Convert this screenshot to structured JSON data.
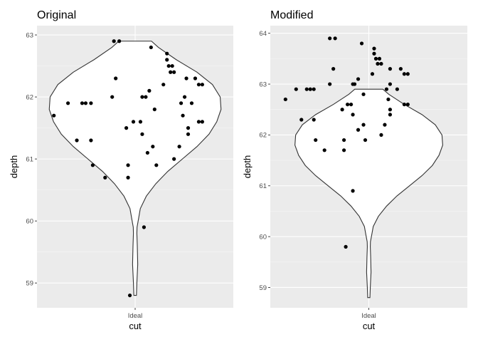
{
  "chart_data": [
    {
      "type": "violin",
      "title": "Original",
      "xlabel": "cut",
      "ylabel": "depth",
      "categories": [
        "Ideal"
      ],
      "ylim": [
        58.6,
        63.15
      ],
      "yticks": [
        59,
        60,
        61,
        62,
        63
      ],
      "grid": true,
      "violin": {
        "profile": [
          [
            58.8,
            0.015
          ],
          [
            59.0,
            0.02
          ],
          [
            59.3,
            0.03
          ],
          [
            59.6,
            0.025
          ],
          [
            59.8,
            0.02
          ],
          [
            59.9,
            0.022
          ],
          [
            60.0,
            0.035
          ],
          [
            60.2,
            0.06
          ],
          [
            60.4,
            0.13
          ],
          [
            60.6,
            0.24
          ],
          [
            60.8,
            0.38
          ],
          [
            61.0,
            0.55
          ],
          [
            61.2,
            0.72
          ],
          [
            61.4,
            0.86
          ],
          [
            61.6,
            0.95
          ],
          [
            61.8,
            1.0
          ],
          [
            62.0,
            0.99
          ],
          [
            62.2,
            0.9
          ],
          [
            62.4,
            0.72
          ],
          [
            62.6,
            0.48
          ],
          [
            62.8,
            0.27
          ],
          [
            62.9,
            0.19
          ]
        ]
      },
      "points": [
        {
          "x": -0.92,
          "y": 61.7
        },
        {
          "x": -0.76,
          "y": 61.9
        },
        {
          "x": -0.66,
          "y": 61.3
        },
        {
          "x": -0.6,
          "y": 61.9
        },
        {
          "x": -0.56,
          "y": 61.9
        },
        {
          "x": -0.5,
          "y": 61.3
        },
        {
          "x": -0.5,
          "y": 61.9
        },
        {
          "x": -0.48,
          "y": 60.9
        },
        {
          "x": -0.34,
          "y": 60.7
        },
        {
          "x": -0.26,
          "y": 62.0
        },
        {
          "x": -0.24,
          "y": 62.9
        },
        {
          "x": -0.22,
          "y": 62.3
        },
        {
          "x": -0.18,
          "y": 62.9
        },
        {
          "x": -0.1,
          "y": 61.5
        },
        {
          "x": -0.08,
          "y": 60.9
        },
        {
          "x": -0.08,
          "y": 60.7
        },
        {
          "x": -0.06,
          "y": 58.8
        },
        {
          "x": -0.02,
          "y": 61.6
        },
        {
          "x": 0.06,
          "y": 61.6
        },
        {
          "x": 0.08,
          "y": 62.0
        },
        {
          "x": 0.08,
          "y": 61.4
        },
        {
          "x": 0.1,
          "y": 59.9
        },
        {
          "x": 0.12,
          "y": 62.0
        },
        {
          "x": 0.14,
          "y": 61.1
        },
        {
          "x": 0.16,
          "y": 62.1
        },
        {
          "x": 0.18,
          "y": 62.8
        },
        {
          "x": 0.2,
          "y": 61.2
        },
        {
          "x": 0.22,
          "y": 61.8
        },
        {
          "x": 0.24,
          "y": 60.9
        },
        {
          "x": 0.32,
          "y": 62.2
        },
        {
          "x": 0.36,
          "y": 62.7
        },
        {
          "x": 0.36,
          "y": 62.6
        },
        {
          "x": 0.38,
          "y": 62.5
        },
        {
          "x": 0.4,
          "y": 62.4
        },
        {
          "x": 0.42,
          "y": 62.5
        },
        {
          "x": 0.44,
          "y": 62.4
        },
        {
          "x": 0.44,
          "y": 61.0
        },
        {
          "x": 0.5,
          "y": 61.2
        },
        {
          "x": 0.52,
          "y": 61.9
        },
        {
          "x": 0.54,
          "y": 61.7
        },
        {
          "x": 0.56,
          "y": 62.0
        },
        {
          "x": 0.58,
          "y": 62.3
        },
        {
          "x": 0.6,
          "y": 61.4
        },
        {
          "x": 0.6,
          "y": 61.5
        },
        {
          "x": 0.64,
          "y": 61.9
        },
        {
          "x": 0.68,
          "y": 62.3
        },
        {
          "x": 0.72,
          "y": 62.2
        },
        {
          "x": 0.72,
          "y": 61.6
        },
        {
          "x": 0.76,
          "y": 62.2
        },
        {
          "x": 0.76,
          "y": 61.6
        }
      ]
    },
    {
      "type": "violin",
      "title": "Modified",
      "xlabel": "cut",
      "ylabel": "depth",
      "categories": [
        "Ideal"
      ],
      "ylim": [
        58.6,
        64.15
      ],
      "yticks": [
        59,
        60,
        61,
        62,
        63,
        64
      ],
      "grid": true,
      "violin": {
        "profile": [
          [
            58.8,
            0.015
          ],
          [
            59.0,
            0.02
          ],
          [
            59.3,
            0.03
          ],
          [
            59.6,
            0.025
          ],
          [
            59.8,
            0.02
          ],
          [
            59.9,
            0.022
          ],
          [
            60.0,
            0.035
          ],
          [
            60.2,
            0.06
          ],
          [
            60.4,
            0.13
          ],
          [
            60.6,
            0.24
          ],
          [
            60.8,
            0.38
          ],
          [
            61.0,
            0.55
          ],
          [
            61.2,
            0.72
          ],
          [
            61.4,
            0.86
          ],
          [
            61.6,
            0.95
          ],
          [
            61.8,
            1.0
          ],
          [
            62.0,
            0.99
          ],
          [
            62.2,
            0.9
          ],
          [
            62.4,
            0.72
          ],
          [
            62.6,
            0.48
          ],
          [
            62.8,
            0.27
          ],
          [
            62.9,
            0.19
          ]
        ]
      },
      "points": [
        {
          "x": -0.94,
          "y": 62.7
        },
        {
          "x": -0.82,
          "y": 62.9
        },
        {
          "x": -0.76,
          "y": 62.3
        },
        {
          "x": -0.7,
          "y": 62.9
        },
        {
          "x": -0.66,
          "y": 62.9
        },
        {
          "x": -0.62,
          "y": 62.3
        },
        {
          "x": -0.62,
          "y": 62.9
        },
        {
          "x": -0.6,
          "y": 61.9
        },
        {
          "x": -0.5,
          "y": 61.7
        },
        {
          "x": -0.44,
          "y": 63.0
        },
        {
          "x": -0.44,
          "y": 63.9
        },
        {
          "x": -0.4,
          "y": 63.3
        },
        {
          "x": -0.38,
          "y": 63.9
        },
        {
          "x": -0.3,
          "y": 62.5
        },
        {
          "x": -0.28,
          "y": 61.9
        },
        {
          "x": -0.28,
          "y": 61.7
        },
        {
          "x": -0.26,
          "y": 59.8
        },
        {
          "x": -0.24,
          "y": 62.6
        },
        {
          "x": -0.2,
          "y": 62.6
        },
        {
          "x": -0.18,
          "y": 63.0
        },
        {
          "x": -0.18,
          "y": 62.4
        },
        {
          "x": -0.18,
          "y": 60.9
        },
        {
          "x": -0.16,
          "y": 63.0
        },
        {
          "x": -0.12,
          "y": 62.1
        },
        {
          "x": -0.12,
          "y": 63.1
        },
        {
          "x": -0.08,
          "y": 63.8
        },
        {
          "x": -0.06,
          "y": 62.2
        },
        {
          "x": -0.06,
          "y": 62.8
        },
        {
          "x": -0.04,
          "y": 61.9
        },
        {
          "x": 0.04,
          "y": 63.2
        },
        {
          "x": 0.06,
          "y": 63.7
        },
        {
          "x": 0.06,
          "y": 63.6
        },
        {
          "x": 0.08,
          "y": 63.5
        },
        {
          "x": 0.1,
          "y": 63.4
        },
        {
          "x": 0.12,
          "y": 63.5
        },
        {
          "x": 0.14,
          "y": 63.4
        },
        {
          "x": 0.14,
          "y": 62.0
        },
        {
          "x": 0.18,
          "y": 62.2
        },
        {
          "x": 0.2,
          "y": 62.9
        },
        {
          "x": 0.22,
          "y": 62.7
        },
        {
          "x": 0.24,
          "y": 63.0
        },
        {
          "x": 0.24,
          "y": 63.3
        },
        {
          "x": 0.24,
          "y": 62.4
        },
        {
          "x": 0.24,
          "y": 62.5
        },
        {
          "x": 0.32,
          "y": 62.9
        },
        {
          "x": 0.36,
          "y": 63.3
        },
        {
          "x": 0.4,
          "y": 63.2
        },
        {
          "x": 0.4,
          "y": 62.6
        },
        {
          "x": 0.44,
          "y": 63.2
        },
        {
          "x": 0.44,
          "y": 62.6
        }
      ]
    }
  ]
}
